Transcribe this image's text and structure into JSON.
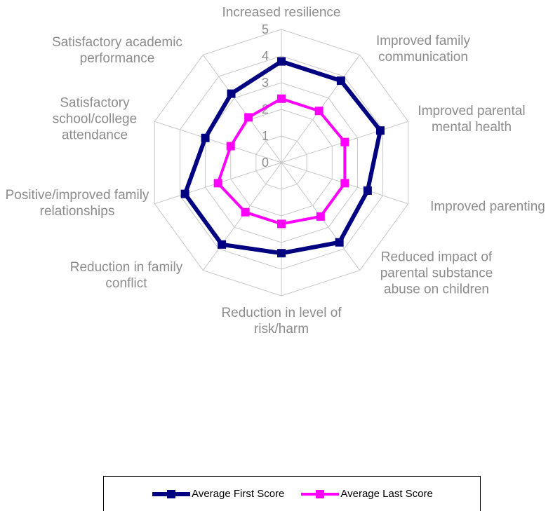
{
  "chart_data": {
    "type": "radar",
    "categories": [
      "Increased resilience",
      "Improved family communication",
      "Improved parental mental health",
      "Improved parenting",
      "Reduced impact of parental substance abuse on children",
      "Reduction in level of risk/harm",
      "Reduction in family conflict",
      "Positive/improved family relationships",
      "Satisfactory school/college attendance",
      "Satisfactory academic performance"
    ],
    "series": [
      {
        "name": "Average First Score",
        "color": "#000080",
        "values": [
          3.8,
          3.8,
          3.9,
          3.4,
          3.7,
          3.4,
          3.8,
          3.8,
          3.0,
          3.2
        ]
      },
      {
        "name": "Average Last Score",
        "color": "#ff00ff",
        "values": [
          2.4,
          2.4,
          2.5,
          2.5,
          2.5,
          2.3,
          2.3,
          2.5,
          2.0,
          2.1
        ]
      }
    ],
    "ylim": [
      0,
      5
    ],
    "yticks": [
      0,
      1,
      2,
      3,
      4,
      5
    ],
    "grid": true,
    "legend": "bottom"
  }
}
